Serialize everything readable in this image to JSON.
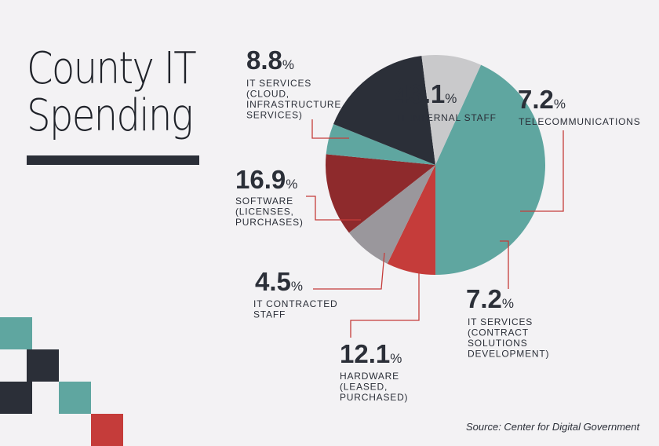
{
  "title": {
    "line1": "County IT",
    "line2": "Spending"
  },
  "source": "Source: Center for Digital Government",
  "colors": {
    "background": "#f3f2f4",
    "teal": "#5fa6a0",
    "red": "#c53c3a",
    "dark_red": "#8e2a2c",
    "navy": "#2b2f38",
    "gray": "#9a979c",
    "light_gray": "#c9c9cb",
    "leader": "#c53c3a"
  },
  "chart_data": {
    "type": "pie",
    "slices": [
      {
        "pct_label": "43.1",
        "value": 43.1,
        "label": [
          "IT INTERNAL STAFF"
        ],
        "color": "#5fa6a0"
      },
      {
        "pct_label": "7.2",
        "value": 7.2,
        "label": [
          "TELECOMMUNICATIONS"
        ],
        "color": "#c53c3a"
      },
      {
        "pct_label": "7.2",
        "value": 7.2,
        "label": [
          "IT SERVICES",
          "(CONTRACT",
          "SOLUTIONS",
          "DEVELOPMENT)"
        ],
        "color": "#9a979c"
      },
      {
        "pct_label": "12.1",
        "value": 12.1,
        "label": [
          "HARDWARE",
          "(LEASED,",
          "PURCHASED)"
        ],
        "color": "#8e2a2c"
      },
      {
        "pct_label": "4.5",
        "value": 4.5,
        "label": [
          "IT CONTRACTED",
          "STAFF"
        ],
        "color": "#5fa6a0"
      },
      {
        "pct_label": "16.9",
        "value": 16.9,
        "label": [
          "SOFTWARE",
          "(LICENSES,",
          "PURCHASES)"
        ],
        "color": "#2b2f38"
      },
      {
        "pct_label": "8.8",
        "value": 8.8,
        "label": [
          "IT SERVICES",
          "(CLOUD,",
          "INFRASTRUCTURE",
          "SERVICES)"
        ],
        "color": "#c9c9cb"
      }
    ],
    "percent_symbol": "%"
  }
}
